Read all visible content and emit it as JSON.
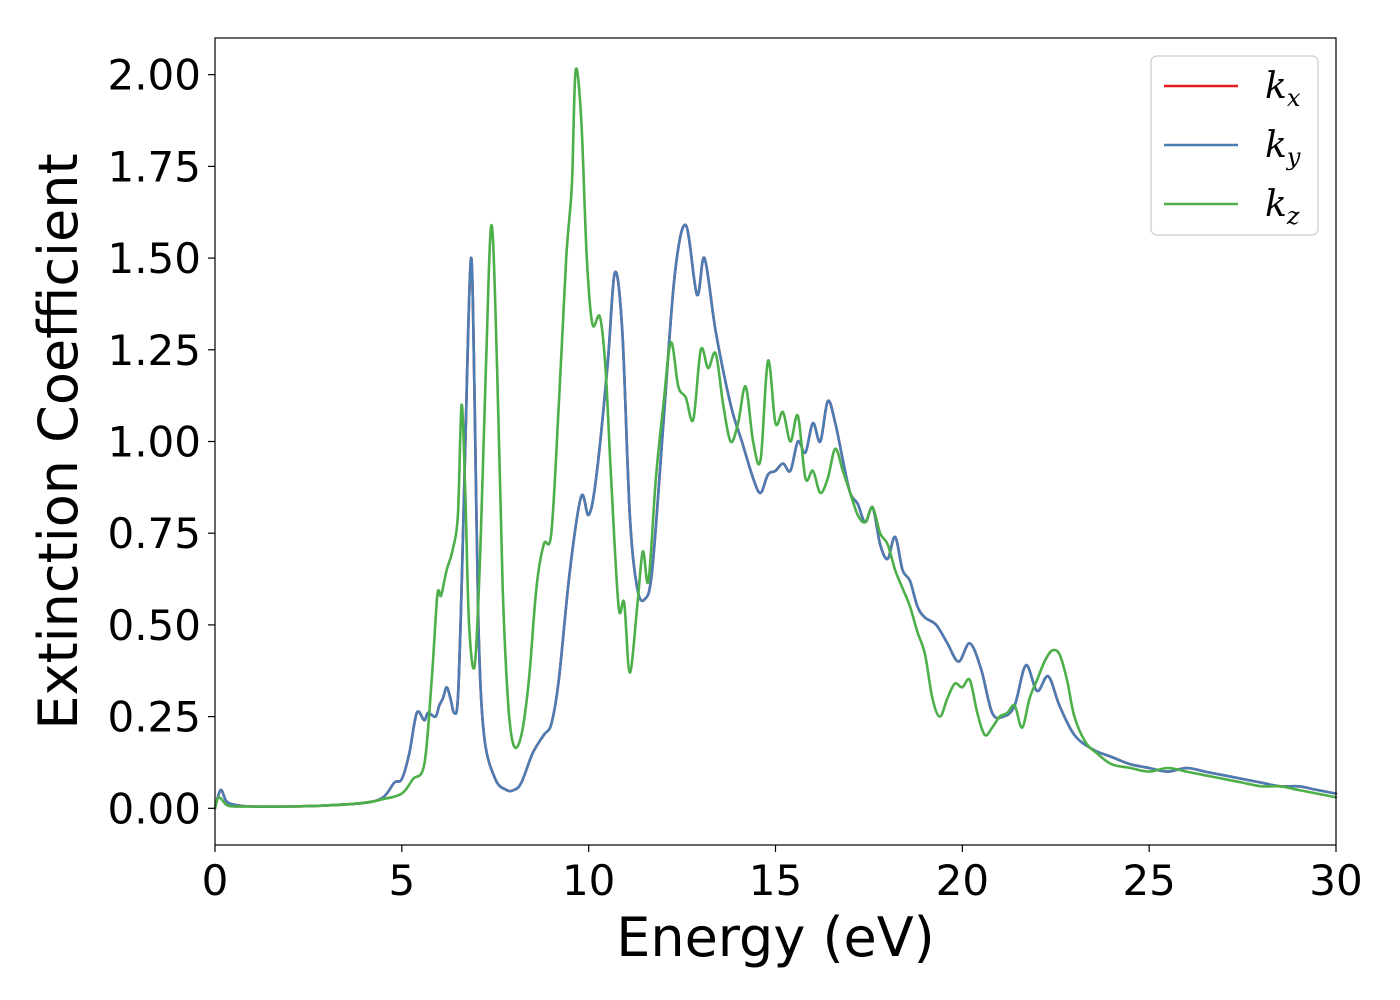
{
  "chart_data": {
    "type": "line",
    "xlabel": "Energy (eV)",
    "ylabel": "Extinction Coefficient",
    "xlim": [
      0,
      30
    ],
    "ylim": [
      -0.1,
      2.1
    ],
    "xticks": [
      0,
      5,
      10,
      15,
      20,
      25,
      30
    ],
    "yticks": [
      0.0,
      0.25,
      0.5,
      0.75,
      1.0,
      1.25,
      1.5,
      1.75,
      2.0
    ],
    "ytick_labels": [
      "0.00",
      "0.25",
      "0.50",
      "0.75",
      "1.00",
      "1.25",
      "1.50",
      "1.75",
      "2.00"
    ],
    "grid": false,
    "legend_position": "top-right",
    "series": [
      {
        "name": "k_x",
        "legend_base": "k",
        "legend_sub": "x",
        "color": "#e41a1c",
        "x": [
          0.0,
          0.15,
          0.3,
          0.5,
          1.0,
          2.0,
          3.0,
          4.0,
          4.5,
          4.8,
          5.0,
          5.2,
          5.4,
          5.6,
          5.7,
          5.9,
          6.0,
          6.1,
          6.2,
          6.3,
          6.4,
          6.5,
          6.6,
          6.7,
          6.85,
          6.95,
          7.05,
          7.2,
          7.5,
          7.8,
          8.0,
          8.2,
          8.5,
          8.8,
          9.0,
          9.2,
          9.5,
          9.8,
          10.0,
          10.2,
          10.5,
          10.7,
          10.9,
          11.1,
          11.3,
          11.5,
          11.7,
          12.0,
          12.3,
          12.6,
          12.9,
          13.1,
          13.4,
          13.8,
          14.1,
          14.4,
          14.6,
          14.8,
          15.0,
          15.2,
          15.4,
          15.6,
          15.8,
          16.0,
          16.2,
          16.4,
          16.6,
          16.8,
          17.0,
          17.2,
          17.4,
          17.6,
          17.8,
          18.0,
          18.2,
          18.4,
          18.6,
          18.8,
          19.0,
          19.3,
          19.6,
          19.9,
          20.2,
          20.5,
          20.8,
          21.1,
          21.4,
          21.7,
          22.0,
          22.3,
          22.6,
          23.0,
          23.5,
          24.0,
          24.5,
          25.0,
          25.5,
          26.0,
          26.5,
          27.0,
          27.5,
          28.0,
          28.5,
          29.0,
          29.5,
          30.0
        ],
        "y": [
          0.0,
          0.05,
          0.02,
          0.01,
          0.005,
          0.005,
          0.008,
          0.015,
          0.03,
          0.07,
          0.08,
          0.15,
          0.26,
          0.24,
          0.26,
          0.25,
          0.28,
          0.3,
          0.33,
          0.3,
          0.26,
          0.3,
          0.6,
          1.0,
          1.5,
          1.1,
          0.5,
          0.2,
          0.08,
          0.05,
          0.05,
          0.07,
          0.15,
          0.2,
          0.23,
          0.35,
          0.65,
          0.85,
          0.8,
          0.9,
          1.2,
          1.46,
          1.3,
          0.8,
          0.6,
          0.57,
          0.65,
          1.05,
          1.45,
          1.59,
          1.4,
          1.5,
          1.3,
          1.1,
          1.0,
          0.9,
          0.86,
          0.91,
          0.92,
          0.94,
          0.92,
          1.0,
          0.97,
          1.05,
          1.0,
          1.11,
          1.05,
          0.95,
          0.86,
          0.83,
          0.78,
          0.82,
          0.72,
          0.68,
          0.74,
          0.65,
          0.62,
          0.55,
          0.52,
          0.5,
          0.45,
          0.4,
          0.45,
          0.38,
          0.26,
          0.25,
          0.28,
          0.39,
          0.32,
          0.36,
          0.28,
          0.2,
          0.16,
          0.14,
          0.12,
          0.11,
          0.1,
          0.11,
          0.1,
          0.09,
          0.08,
          0.07,
          0.06,
          0.06,
          0.05,
          0.04
        ]
      },
      {
        "name": "k_y",
        "legend_base": "k",
        "legend_sub": "y",
        "color": "#4a7db3",
        "x": [
          0.0,
          0.15,
          0.3,
          0.5,
          1.0,
          2.0,
          3.0,
          4.0,
          4.5,
          4.8,
          5.0,
          5.2,
          5.4,
          5.6,
          5.7,
          5.9,
          6.0,
          6.1,
          6.2,
          6.3,
          6.4,
          6.5,
          6.6,
          6.7,
          6.85,
          6.95,
          7.05,
          7.2,
          7.5,
          7.8,
          8.0,
          8.2,
          8.5,
          8.8,
          9.0,
          9.2,
          9.5,
          9.8,
          10.0,
          10.2,
          10.5,
          10.7,
          10.9,
          11.1,
          11.3,
          11.5,
          11.7,
          12.0,
          12.3,
          12.6,
          12.9,
          13.1,
          13.4,
          13.8,
          14.1,
          14.4,
          14.6,
          14.8,
          15.0,
          15.2,
          15.4,
          15.6,
          15.8,
          16.0,
          16.2,
          16.4,
          16.6,
          16.8,
          17.0,
          17.2,
          17.4,
          17.6,
          17.8,
          18.0,
          18.2,
          18.4,
          18.6,
          18.8,
          19.0,
          19.3,
          19.6,
          19.9,
          20.2,
          20.5,
          20.8,
          21.1,
          21.4,
          21.7,
          22.0,
          22.3,
          22.6,
          23.0,
          23.5,
          24.0,
          24.5,
          25.0,
          25.5,
          26.0,
          26.5,
          27.0,
          27.5,
          28.0,
          28.5,
          29.0,
          29.5,
          30.0
        ],
        "y": [
          0.0,
          0.05,
          0.02,
          0.01,
          0.005,
          0.005,
          0.008,
          0.015,
          0.03,
          0.07,
          0.08,
          0.15,
          0.26,
          0.24,
          0.26,
          0.25,
          0.28,
          0.3,
          0.33,
          0.3,
          0.26,
          0.3,
          0.6,
          1.0,
          1.5,
          1.1,
          0.5,
          0.2,
          0.08,
          0.05,
          0.05,
          0.07,
          0.15,
          0.2,
          0.23,
          0.35,
          0.65,
          0.85,
          0.8,
          0.9,
          1.2,
          1.46,
          1.3,
          0.8,
          0.6,
          0.57,
          0.65,
          1.05,
          1.45,
          1.59,
          1.4,
          1.5,
          1.3,
          1.1,
          1.0,
          0.9,
          0.86,
          0.91,
          0.92,
          0.94,
          0.92,
          1.0,
          0.97,
          1.05,
          1.0,
          1.11,
          1.05,
          0.95,
          0.86,
          0.83,
          0.78,
          0.82,
          0.72,
          0.68,
          0.74,
          0.65,
          0.62,
          0.55,
          0.52,
          0.5,
          0.45,
          0.4,
          0.45,
          0.38,
          0.26,
          0.25,
          0.28,
          0.39,
          0.32,
          0.36,
          0.28,
          0.2,
          0.16,
          0.14,
          0.12,
          0.11,
          0.1,
          0.11,
          0.1,
          0.09,
          0.08,
          0.07,
          0.06,
          0.06,
          0.05,
          0.04
        ]
      },
      {
        "name": "k_z",
        "legend_base": "k",
        "legend_sub": "z",
        "color": "#4daf4a",
        "x": [
          0.0,
          0.1,
          0.3,
          0.5,
          1.0,
          2.0,
          3.0,
          4.0,
          4.5,
          5.0,
          5.3,
          5.6,
          5.8,
          5.95,
          6.05,
          6.2,
          6.35,
          6.5,
          6.6,
          6.7,
          6.8,
          6.95,
          7.1,
          7.25,
          7.4,
          7.55,
          7.7,
          7.85,
          8.0,
          8.2,
          8.4,
          8.6,
          8.8,
          9.0,
          9.2,
          9.4,
          9.55,
          9.65,
          9.8,
          9.95,
          10.1,
          10.3,
          10.45,
          10.6,
          10.8,
          10.95,
          11.1,
          11.3,
          11.45,
          11.6,
          11.8,
          12.0,
          12.2,
          12.4,
          12.6,
          12.8,
          13.0,
          13.2,
          13.4,
          13.6,
          13.8,
          14.0,
          14.2,
          14.4,
          14.6,
          14.8,
          15.0,
          15.2,
          15.4,
          15.6,
          15.8,
          16.0,
          16.2,
          16.4,
          16.6,
          16.8,
          17.0,
          17.2,
          17.4,
          17.6,
          17.8,
          18.0,
          18.2,
          18.4,
          18.6,
          18.8,
          19.0,
          19.2,
          19.4,
          19.6,
          19.8,
          20.0,
          20.2,
          20.4,
          20.6,
          20.8,
          21.0,
          21.2,
          21.4,
          21.6,
          21.8,
          22.0,
          22.2,
          22.4,
          22.6,
          22.8,
          23.0,
          23.3,
          23.6,
          24.0,
          24.5,
          25.0,
          25.5,
          26.0,
          26.5,
          27.0,
          27.5,
          28.0,
          28.5,
          29.0,
          29.5,
          30.0
        ],
        "y": [
          0.0,
          0.03,
          0.01,
          0.005,
          0.005,
          0.005,
          0.008,
          0.015,
          0.025,
          0.04,
          0.08,
          0.12,
          0.35,
          0.58,
          0.58,
          0.65,
          0.7,
          0.8,
          1.1,
          0.85,
          0.5,
          0.39,
          0.7,
          1.2,
          1.59,
          1.2,
          0.6,
          0.28,
          0.17,
          0.2,
          0.35,
          0.6,
          0.72,
          0.75,
          1.1,
          1.5,
          1.7,
          2.01,
          1.88,
          1.5,
          1.32,
          1.34,
          1.2,
          0.9,
          0.55,
          0.56,
          0.37,
          0.55,
          0.7,
          0.62,
          0.9,
          1.1,
          1.27,
          1.15,
          1.12,
          1.06,
          1.25,
          1.2,
          1.24,
          1.1,
          1.0,
          1.05,
          1.15,
          1.0,
          0.95,
          1.22,
          1.05,
          1.08,
          1.0,
          1.07,
          0.9,
          0.92,
          0.86,
          0.9,
          0.98,
          0.92,
          0.86,
          0.8,
          0.78,
          0.82,
          0.75,
          0.72,
          0.65,
          0.6,
          0.55,
          0.48,
          0.42,
          0.3,
          0.25,
          0.3,
          0.34,
          0.33,
          0.35,
          0.26,
          0.2,
          0.22,
          0.25,
          0.26,
          0.28,
          0.22,
          0.3,
          0.35,
          0.4,
          0.43,
          0.42,
          0.35,
          0.25,
          0.18,
          0.15,
          0.12,
          0.11,
          0.1,
          0.11,
          0.1,
          0.09,
          0.08,
          0.07,
          0.06,
          0.06,
          0.05,
          0.04,
          0.03
        ]
      }
    ]
  }
}
